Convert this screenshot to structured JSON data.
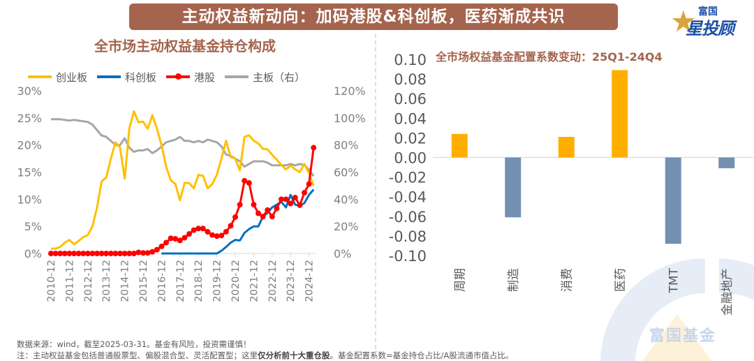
{
  "banner": {
    "title": "主动权益新动向：加码港股&科创板，医药渐成共识"
  },
  "logo": {
    "top": "富国",
    "bottom": "星投顾",
    "watermark": "富国基金"
  },
  "colors": {
    "brand": "#a5644d",
    "gem": "#ffc000",
    "star": "#0070c0",
    "hk": "#ff0000",
    "main": "#a6a6a6",
    "pos_bar": "#ffae00",
    "neg_bar": "#7390b3"
  },
  "footer": {
    "source": "数据来源：wind，截至2025-03-31。基金有风险，投资需谨慎！",
    "note_prefix": "注：主动权益基金包括普通股票型、偏股混合型、灵活配置型；这里",
    "note_bold": "仅分析前十大重仓股",
    "note_suffix": "。基金配置系数=基金持仓占比/A股流通市值占比。"
  },
  "chart_data": [
    {
      "type": "line",
      "title": "全市场主动权益基金持仓构成",
      "x_tick_labels": [
        "2010-12",
        "2011-12",
        "2012-12",
        "2013-12",
        "2014-12",
        "2015-12",
        "2016-12",
        "2017-12",
        "2018-12",
        "2019-12",
        "2020-12",
        "2021-12",
        "2022-12",
        "2023-12",
        "2024-12"
      ],
      "x": [
        "2010-12",
        "2011-03",
        "2011-06",
        "2011-09",
        "2011-12",
        "2012-03",
        "2012-06",
        "2012-09",
        "2012-12",
        "2013-03",
        "2013-06",
        "2013-09",
        "2013-12",
        "2014-03",
        "2014-06",
        "2014-09",
        "2014-12",
        "2015-03",
        "2015-06",
        "2015-09",
        "2015-12",
        "2016-03",
        "2016-06",
        "2016-09",
        "2016-12",
        "2017-03",
        "2017-06",
        "2017-09",
        "2017-12",
        "2018-03",
        "2018-06",
        "2018-09",
        "2018-12",
        "2019-03",
        "2019-06",
        "2019-09",
        "2019-12",
        "2020-03",
        "2020-06",
        "2020-09",
        "2020-12",
        "2021-03",
        "2021-06",
        "2021-09",
        "2021-12",
        "2022-03",
        "2022-06",
        "2022-09",
        "2022-12",
        "2023-03",
        "2023-06",
        "2023-09",
        "2023-12",
        "2024-03",
        "2024-06",
        "2024-09",
        "2024-12",
        "2025-03"
      ],
      "left_axis": {
        "ticks": [
          "0%",
          "5%",
          "10%",
          "15%",
          "20%",
          "25%",
          "30%"
        ],
        "range": [
          0,
          30
        ]
      },
      "right_axis": {
        "ticks": [
          "0%",
          "20%",
          "40%",
          "60%",
          "80%",
          "100%",
          "120%"
        ],
        "range": [
          0,
          120
        ]
      },
      "legend": [
        "创业板",
        "科创板",
        "港股",
        "主板（右）"
      ],
      "series": [
        {
          "name": "创业板",
          "axis": "left",
          "values": [
            0.9,
            0.9,
            1.2,
            2.0,
            2.5,
            1.7,
            2.3,
            3.0,
            3.4,
            5.0,
            8.5,
            13.3,
            14.0,
            17.5,
            20.5,
            19.5,
            13.8,
            23.0,
            26.2,
            24.2,
            24.3,
            23.0,
            25.5,
            23.0,
            20.0,
            16.0,
            13.5,
            12.8,
            9.8,
            13.0,
            13.0,
            12.0,
            14.5,
            14.3,
            12.0,
            12.8,
            14.5,
            17.5,
            20.8,
            17.8,
            17.5,
            15.3,
            21.5,
            21.8,
            20.8,
            20.3,
            19.3,
            19.2,
            18.2,
            17.3,
            16.3,
            15.5,
            16.2,
            15.5,
            15.0,
            16.5,
            14.8,
            12.5
          ]
        },
        {
          "name": "科创板",
          "axis": "left",
          "values": [
            null,
            null,
            null,
            null,
            null,
            null,
            null,
            null,
            null,
            null,
            null,
            null,
            null,
            null,
            null,
            null,
            null,
            null,
            null,
            null,
            null,
            null,
            null,
            null,
            0,
            0,
            0,
            0,
            0,
            0,
            0,
            0,
            0,
            0,
            0,
            0,
            0,
            0.5,
            1.2,
            2.0,
            2.5,
            2.4,
            3.8,
            4.5,
            5.0,
            5.0,
            6.8,
            7.5,
            8.5,
            9.0,
            9.5,
            8.5,
            10.8,
            9.0,
            8.8,
            9.3,
            10.8,
            11.8
          ]
        },
        {
          "name": "港股",
          "axis": "left",
          "values": [
            0,
            0,
            0,
            0,
            0,
            0,
            0,
            0,
            0,
            0,
            0,
            0,
            0,
            0,
            0,
            0,
            0,
            0,
            0,
            0.2,
            0.1,
            0.1,
            0.3,
            0.7,
            1.3,
            2.0,
            2.8,
            2.7,
            2.4,
            2.9,
            3.6,
            4.3,
            4.6,
            4.6,
            4.0,
            3.4,
            3.2,
            3.3,
            4.0,
            5.1,
            6.7,
            9.0,
            13.4,
            13.0,
            9.0,
            7.4,
            6.8,
            8.0,
            6.8,
            8.3,
            10.0,
            10.0,
            9.2,
            10.3,
            8.9,
            11.2,
            12.8,
            19.5
          ]
        },
        {
          "name": "主板（右）",
          "axis": "right",
          "values": [
            99,
            99,
            99,
            98.5,
            98,
            98.5,
            98,
            97.5,
            97,
            95,
            91,
            87,
            86,
            83,
            80,
            80,
            85,
            78,
            75,
            76,
            76,
            77,
            74,
            76,
            79,
            82,
            83,
            84,
            86,
            83,
            83,
            82,
            83,
            82,
            84,
            83,
            82,
            79,
            73,
            72,
            70,
            68,
            64,
            66,
            68,
            68,
            68,
            67,
            65,
            65,
            65,
            65,
            66,
            65,
            66,
            65,
            62,
            57
          ]
        }
      ]
    },
    {
      "type": "bar",
      "title": "全市场权益基金配置系数变动：25Q1-24Q4",
      "categories": [
        "周期",
        "制造",
        "消费",
        "医药",
        "TMT",
        "金融地产"
      ],
      "values": [
        0.024,
        -0.061,
        0.021,
        0.089,
        -0.088,
        -0.011
      ],
      "y_ticks": [
        "0.10",
        "0.08",
        "0.06",
        "0.04",
        "0.02",
        "0.00",
        "-0.02",
        "-0.04",
        "-0.06",
        "-0.08",
        "-0.10"
      ],
      "ylim": [
        -0.1,
        0.1
      ]
    }
  ]
}
